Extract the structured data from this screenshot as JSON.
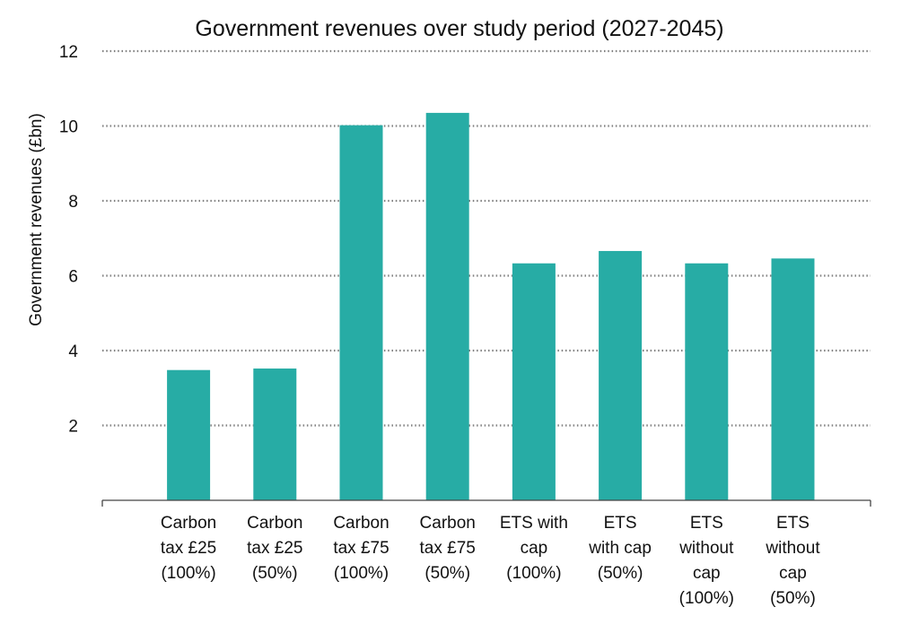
{
  "chart_data": {
    "type": "bar",
    "title": "Government revenues over study period (2027-2045)",
    "xlabel": "",
    "ylabel": "Government revenues (£bn)",
    "ylim": [
      0,
      12
    ],
    "yticks": [
      2,
      4,
      6,
      8,
      10,
      12
    ],
    "grid": true,
    "bar_color": "#27ACA5",
    "categories": [
      [
        "Carbon",
        "tax £25",
        "(100%)"
      ],
      [
        "Carbon",
        "tax £25",
        "(50%)"
      ],
      [
        "Carbon",
        "tax £75",
        "(100%)"
      ],
      [
        "Carbon",
        "tax £75",
        "(50%)"
      ],
      [
        "ETS with",
        "cap",
        "(100%)"
      ],
      [
        "ETS",
        "with cap",
        "(50%)"
      ],
      [
        "ETS",
        "without",
        "cap",
        "(100%)"
      ],
      [
        "ETS",
        "without",
        "cap",
        "(50%)"
      ]
    ],
    "values": [
      3.48,
      3.52,
      10.02,
      10.35,
      6.33,
      6.66,
      6.33,
      6.46
    ]
  }
}
